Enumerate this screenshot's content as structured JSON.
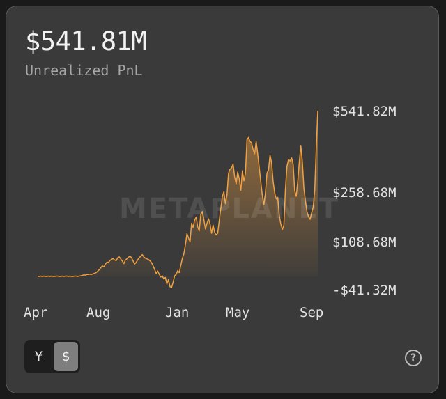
{
  "header": {
    "headline_value": "$541.81M",
    "subtitle": "Unrealized PnL"
  },
  "watermark": "METAPLANET",
  "chart_data": {
    "type": "area",
    "title": "",
    "xlabel": "",
    "ylabel": "",
    "grid": false,
    "legend": "none",
    "line_color": "#f0a040",
    "x_ticks": [
      "Apr",
      "Aug",
      "Jan",
      "May",
      "Sep"
    ],
    "y_ticks": [
      {
        "value": 541.82,
        "label": "$541.82M"
      },
      {
        "value": 258.68,
        "label": "$258.68M"
      },
      {
        "value": 108.68,
        "label": "$108.68M"
      },
      {
        "value": -41.32,
        "label": "-$41.32M"
      }
    ],
    "series": [
      {
        "values": [
          0,
          0,
          1,
          0,
          1,
          0,
          0,
          1,
          0,
          1,
          0,
          0,
          1,
          1,
          0,
          0,
          1,
          0,
          1,
          1,
          0,
          1,
          0,
          0,
          1,
          1,
          0,
          1,
          2,
          3,
          5,
          4,
          6,
          6,
          7,
          6,
          8,
          10,
          12,
          16,
          21,
          27,
          33,
          30,
          38,
          45,
          44,
          50,
          53,
          56,
          52,
          49,
          58,
          61,
          55,
          48,
          40,
          51,
          55,
          60,
          63,
          59,
          49,
          39,
          44,
          52,
          59,
          63,
          68,
          61,
          57,
          55,
          53,
          49,
          43,
          33,
          22,
          9,
          17,
          7,
          -2,
          2,
          -8,
          -3,
          -24,
          -10,
          -32,
          -35,
          -18,
          2,
          6,
          18,
          12,
          34,
          56,
          70,
          98,
          133,
          120,
          108,
          164,
          152,
          174,
          183,
          153,
          141,
          192,
          200,
          176,
          147,
          164,
          178,
          162,
          134,
          159,
          137,
          129,
          134,
          172,
          209,
          246,
          260,
          224,
          250,
          324,
          339,
          343,
          357,
          312,
          288,
          329,
          304,
          265,
          333,
          298,
          324,
          441,
          449,
          435,
          430,
          407,
          392,
          435,
          390,
          343,
          294,
          248,
          221,
          256,
          325,
          336,
          388,
          362,
          297,
          256,
          238,
          243,
          187,
          162,
          145,
          159,
          270,
          349,
          372,
          367,
          378,
          355,
          264,
          246,
          297,
          364,
          421,
          364,
          272,
          232,
          200,
          185,
          176,
          196,
          213,
          265,
          410,
          541.82
        ]
      }
    ]
  },
  "currency_toggle": {
    "options": [
      "¥",
      "$"
    ],
    "active_index": 1
  },
  "help_icon_glyph": "?"
}
